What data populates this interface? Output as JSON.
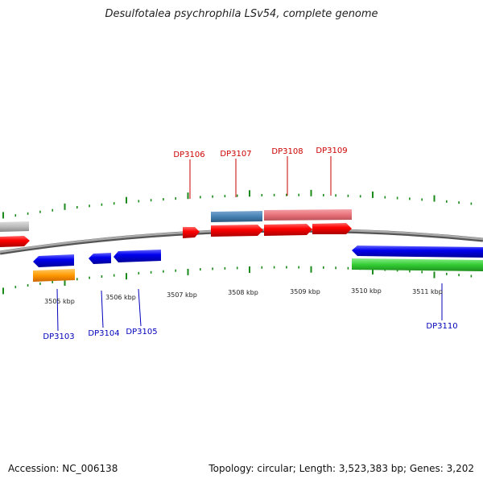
{
  "title": "Desulfotalea psychrophila LSv54, complete genome",
  "footer": {
    "accession": "Accession: NC_006138",
    "summary": "Topology: circular; Length: 3,523,383 bp; Genes: 3,202"
  },
  "scale": {
    "ticks": [
      "3505 kbp",
      "3506 kbp",
      "3507 kbp",
      "3508 kbp",
      "3509 kbp",
      "3510 kbp",
      "3511 kbp"
    ]
  },
  "genes_top": [
    {
      "label": "DP3106"
    },
    {
      "label": "DP3107"
    },
    {
      "label": "DP3108"
    },
    {
      "label": "DP3109"
    }
  ],
  "genes_bottom": [
    {
      "label": "DP3103"
    },
    {
      "label": "DP3104"
    },
    {
      "label": "DP3105"
    },
    {
      "label": "DP3110"
    }
  ],
  "colors": {
    "forward_cds": "#ff0000",
    "reverse_cds": "#0000ee",
    "forward_label": "#cc0000",
    "reverse_label": "#0000bb",
    "tick": "#1a8a1a",
    "backbone": "#888888",
    "orange_feature": "#ff9900",
    "steelblue_feature": "#4682b4",
    "pink_feature": "#e8737a",
    "green_feature": "#33cc33",
    "gray_feature": "#bbbbbb"
  }
}
